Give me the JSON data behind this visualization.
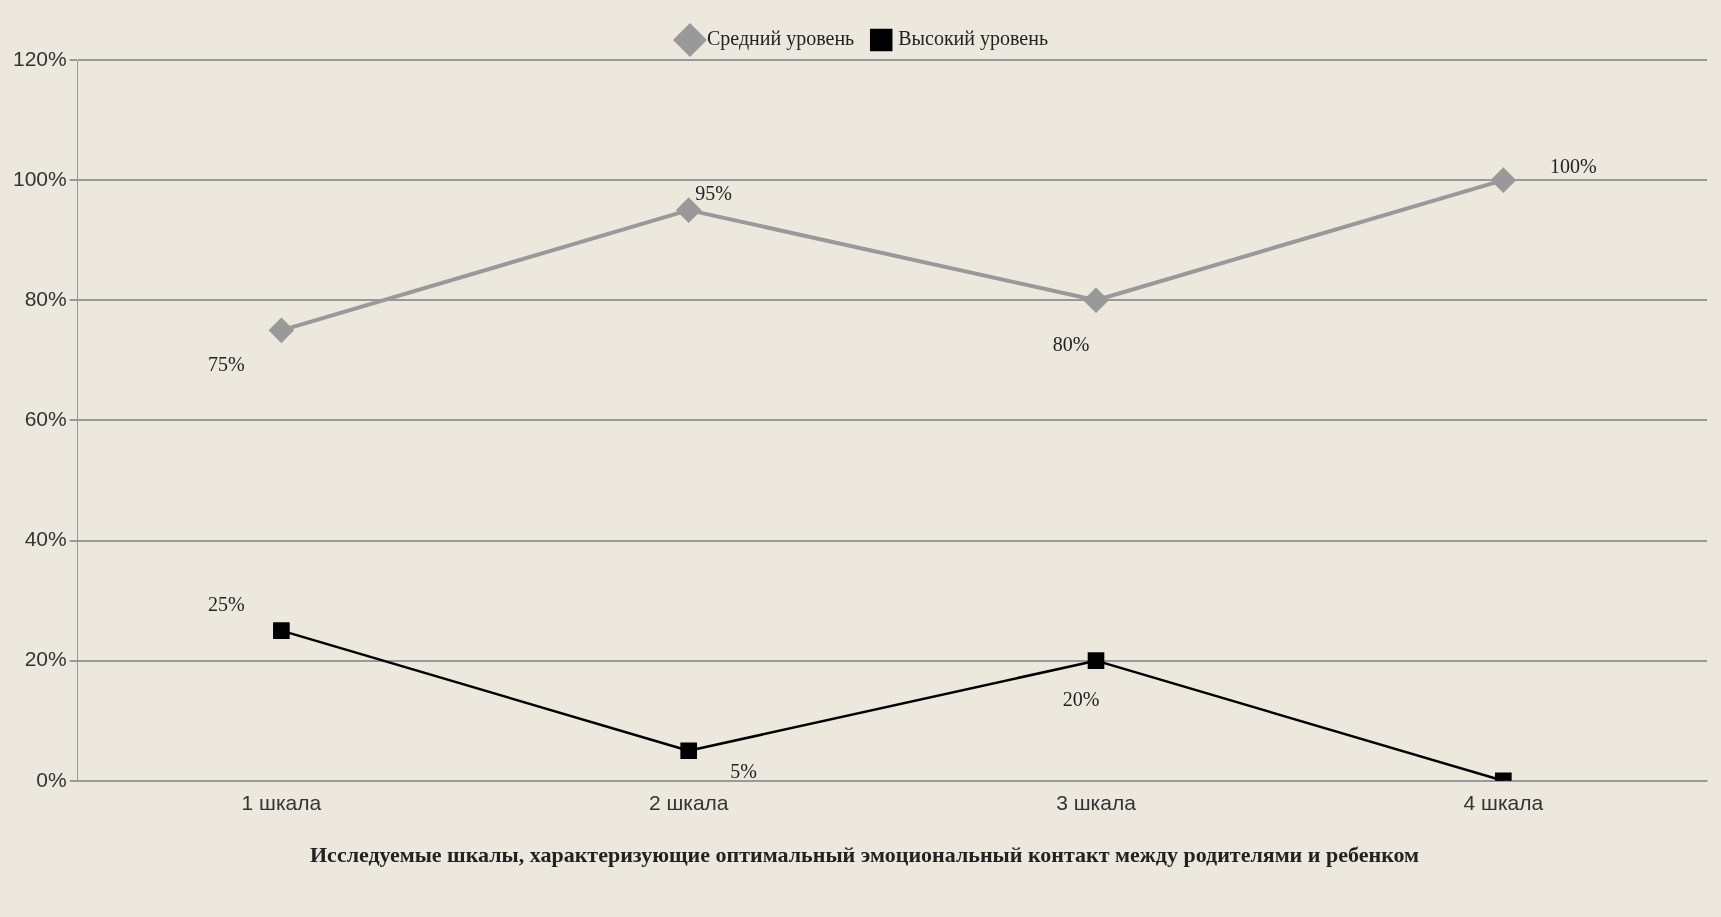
{
  "chart_data": {
    "type": "line",
    "xlabel": "Исследуемые шкалы, характеризующие оптимальный эмоциональный контакт между родителями и ребенком",
    "categories": [
      "1 шкала",
      "2 шкала",
      "3 шкала",
      "4 шкала"
    ],
    "series": [
      {
        "name": "Средний уровень",
        "color": "#999999",
        "marker": "diamond",
        "values": [
          75,
          95,
          80,
          100
        ],
        "value_labels": [
          "75%",
          "95%",
          "80%",
          "100%"
        ]
      },
      {
        "name": "Высокий уровень",
        "color": "#000000",
        "marker": "square",
        "values": [
          25,
          5,
          20,
          0
        ],
        "value_labels": [
          "25%",
          "5%",
          "20%",
          null
        ]
      }
    ],
    "ylim": [
      0,
      120
    ],
    "yticks": [
      {
        "value": 0,
        "label": "0%"
      },
      {
        "value": 20,
        "label": "20%"
      },
      {
        "value": 40,
        "label": "40%"
      },
      {
        "value": 60,
        "label": "60%"
      },
      {
        "value": 80,
        "label": "80%"
      },
      {
        "value": 100,
        "label": "100%"
      },
      {
        "value": 120,
        "label": "120%"
      }
    ],
    "grid": "y",
    "legend": "top",
    "line_style": "solid"
  }
}
